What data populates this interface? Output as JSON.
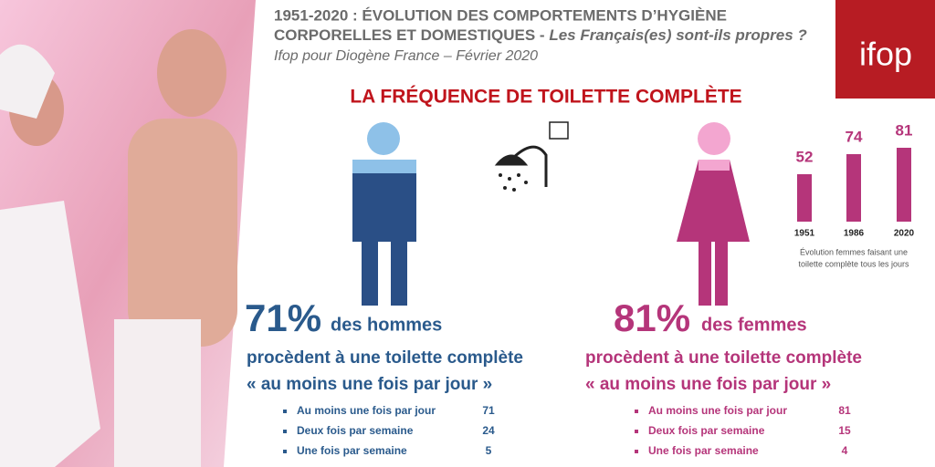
{
  "header": {
    "title_line1": "1951-2020 : ÉVOLUTION DES COMPORTEMENTS D’HYGIÈNE",
    "title_line2": "CORPORELLES ET DOMESTIQUES -",
    "title_line2_italic": "Les Français(es) sont-ils propres ?",
    "subtitle": "Ifop pour Diogène France – Février 2020",
    "logo": "ifop"
  },
  "section_title": "LA FRÉQUENCE DE TOILETTE COMPLÈTE",
  "men": {
    "percent": "71%",
    "who": "des hommes",
    "line1": "procèdent à une toilette complète",
    "line2": "« au moins une fois par jour »",
    "list": [
      {
        "label": "Au moins une fois par jour",
        "value": 71
      },
      {
        "label": "Deux fois par semaine",
        "value": 24
      },
      {
        "label": "Une fois par semaine",
        "value": 5
      }
    ]
  },
  "women": {
    "percent": "81%",
    "who": "des femmes",
    "line1": "procèdent à une toilette complète",
    "line2": "« au moins une fois par jour »",
    "list": [
      {
        "label": "Au moins une fois par jour",
        "value": 81
      },
      {
        "label": "Deux fois par semaine",
        "value": 15
      },
      {
        "label": "Une fois par semaine",
        "value": 4
      }
    ]
  },
  "chart_data": {
    "type": "bar",
    "categories": [
      "1951",
      "1986",
      "2020"
    ],
    "values": [
      52,
      74,
      81
    ],
    "color": "#b5357a",
    "caption_line1": "Évolution femmes faisant une",
    "caption_line2": "toilette complète tous les jours"
  }
}
